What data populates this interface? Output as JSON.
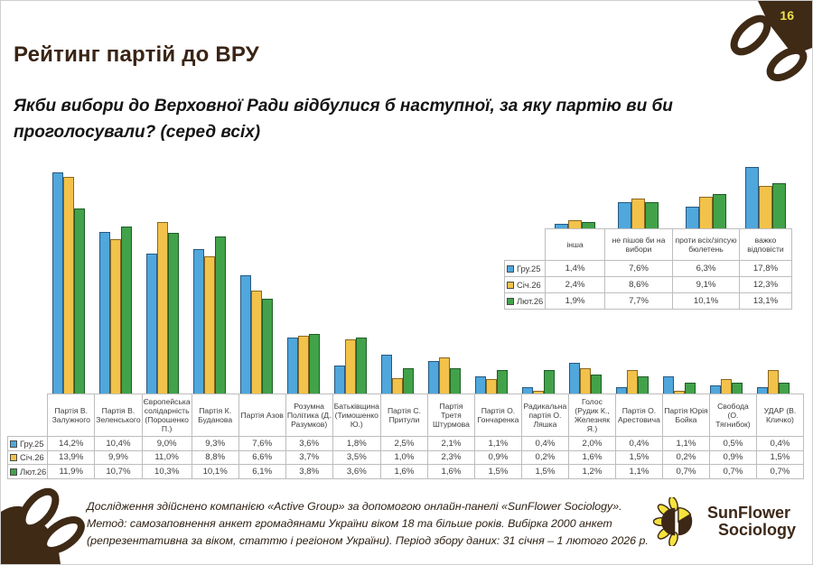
{
  "page": {
    "number": "16"
  },
  "header": {
    "title": "Рейтинг партій до ВРУ"
  },
  "question": "Якби вибори до Верховної Ради відбулися б наступної, за яку партію ви би проголосували? (серед всіх)",
  "chart_data": {
    "type": "bar",
    "unit": "%",
    "decimal_separator": ",",
    "legend_position": "table-row-labels",
    "grid": false,
    "main": {
      "categories": [
        "Партія В. Залужного",
        "Партія В. Зеленського",
        "Європейська солідарність (Порошенко П.)",
        "Партія К. Буданова",
        "Партія Азов",
        "Розумна Політика (Д. Разумков)",
        "Батьківщина (Тимошенко Ю.)",
        "Партія С. Притули",
        "Партія Третя Штурмова",
        "Партія О. Гончаренка",
        "Радикальна партія О. Ляшка",
        "Голос (Рудик К., Железняк Я.)",
        "Партія О. Арестовича",
        "Партія Юрія Бойка",
        "Свобода (О. Тягнибок)",
        "УДАР (В. Кличко)"
      ],
      "series": [
        {
          "name": "Гру.25",
          "fill": "#4FA7DC",
          "border": "#27587f",
          "values": [
            14.2,
            10.4,
            9.0,
            9.3,
            7.6,
            3.6,
            1.8,
            2.5,
            2.1,
            1.1,
            0.4,
            2.0,
            0.4,
            1.1,
            0.5,
            0.4
          ]
        },
        {
          "name": "Січ.26",
          "fill": "#F2C24A",
          "border": "#8a671f",
          "values": [
            13.9,
            9.9,
            11.0,
            8.8,
            6.6,
            3.7,
            3.5,
            1.0,
            2.3,
            0.9,
            0.2,
            1.6,
            1.5,
            0.2,
            0.9,
            1.5
          ]
        },
        {
          "name": "Лют.26",
          "fill": "#42A24A",
          "border": "#1f5c28",
          "values": [
            11.9,
            10.7,
            10.3,
            10.1,
            6.1,
            3.8,
            3.6,
            1.6,
            1.6,
            1.5,
            1.5,
            1.2,
            1.1,
            0.7,
            0.7,
            0.7
          ]
        }
      ]
    },
    "inset": {
      "categories": [
        "інша",
        "не пішов би на вибори",
        "проти всіх/зіпсую бюлетень",
        "важко відповісти"
      ],
      "series": [
        {
          "name": "Гру.25",
          "fill": "#4FA7DC",
          "border": "#27587f",
          "values": [
            1.4,
            7.6,
            6.3,
            17.8
          ]
        },
        {
          "name": "Січ.26",
          "fill": "#F2C24A",
          "border": "#8a671f",
          "values": [
            2.4,
            8.6,
            9.1,
            12.3
          ]
        },
        {
          "name": "Лют.26",
          "fill": "#42A24A",
          "border": "#1f5c28",
          "values": [
            1.9,
            7.7,
            10.1,
            13.1
          ]
        }
      ]
    }
  },
  "footer": {
    "methodology": "Дослідження здійснено компанією «Active Group» за допомогою онлайн-панелі «SunFlower Sociology». Метод: самозаповнення анкет громадянами України віком 18 та більше років. Вибірка 2000 анкет (репрезентативна за віком, статтю і регіоном України). Період збору даних: 31 січня – 1 лютого 2026 р.",
    "logo_line1": "SunFlower",
    "logo_line2": "Sociology"
  }
}
